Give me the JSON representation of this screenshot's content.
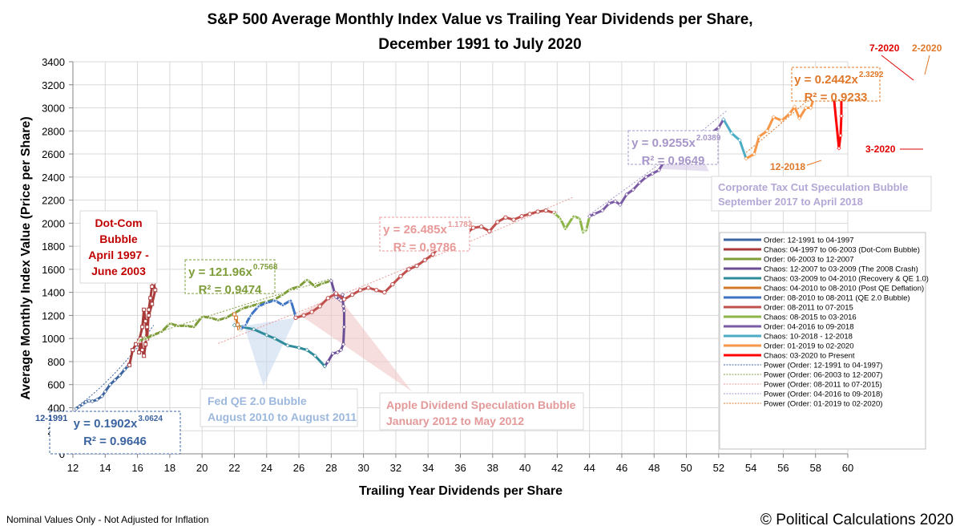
{
  "chart_data": {
    "type": "line",
    "title": "S&P 500 Average Monthly Index Value vs Trailing Year Dividends per Share,",
    "subtitle": "December 1991 to July 2020",
    "xlabel": "Trailing Year Dividends per Share",
    "ylabel": "Average Monthly Index Value (Price per Share)",
    "xlim": [
      12,
      60
    ],
    "ylim": [
      0,
      3400
    ],
    "xticks": [
      12,
      14,
      16,
      18,
      20,
      22,
      24,
      26,
      28,
      30,
      32,
      34,
      36,
      38,
      40,
      42,
      44,
      46,
      48,
      50,
      52,
      54,
      56,
      58,
      60
    ],
    "yticks": [
      0,
      200,
      400,
      600,
      800,
      1000,
      1200,
      1400,
      1600,
      1800,
      2000,
      2200,
      2400,
      2600,
      2800,
      3000,
      3200,
      3400
    ],
    "grid": true,
    "legend_position": "bottom-right",
    "series": [
      {
        "name": "Order: 12-1991 to 04-1997",
        "color": "#3B64A0",
        "marker": "diamond",
        "points": [
          [
            12.2,
            390
          ],
          [
            12.4,
            410
          ],
          [
            12.6,
            430
          ],
          [
            12.8,
            450
          ],
          [
            13.0,
            460
          ],
          [
            13.2,
            455
          ],
          [
            13.5,
            470
          ],
          [
            13.8,
            500
          ],
          [
            14.0,
            540
          ],
          [
            14.3,
            600
          ],
          [
            14.6,
            640
          ],
          [
            14.9,
            680
          ],
          [
            15.2,
            730
          ],
          [
            15.4,
            760
          ],
          [
            15.5,
            780
          ]
        ]
      },
      {
        "name": "Chaos: 04-1997 to 06-2003 (Dot-Com Bubble)",
        "color": "#A83A3A",
        "marker": "square",
        "points": [
          [
            15.5,
            770
          ],
          [
            15.7,
            900
          ],
          [
            15.9,
            950
          ],
          [
            16.1,
            980
          ],
          [
            16.3,
            1100
          ],
          [
            16.4,
            1250
          ],
          [
            16.5,
            1150
          ],
          [
            16.6,
            1000
          ],
          [
            16.7,
            1250
          ],
          [
            16.8,
            1350
          ],
          [
            16.9,
            1450
          ],
          [
            17.0,
            1480
          ],
          [
            17.1,
            1420
          ],
          [
            16.9,
            1300
          ],
          [
            16.7,
            1200
          ],
          [
            16.6,
            1100
          ],
          [
            16.5,
            950
          ],
          [
            16.4,
            850
          ],
          [
            16.3,
            900
          ],
          [
            16.2,
            1000
          ],
          [
            16.1,
            880
          ]
        ]
      },
      {
        "name": "Order: 06-2003 to 12-2007",
        "color": "#7E9D3A",
        "marker": "triangle",
        "points": [
          [
            16.1,
            980
          ],
          [
            16.5,
            1000
          ],
          [
            17.0,
            1030
          ],
          [
            17.5,
            1060
          ],
          [
            18.0,
            1130
          ],
          [
            18.5,
            1110
          ],
          [
            19.0,
            1110
          ],
          [
            19.5,
            1100
          ],
          [
            20.0,
            1190
          ],
          [
            20.5,
            1180
          ],
          [
            21.0,
            1160
          ],
          [
            21.5,
            1180
          ],
          [
            22.0,
            1220
          ],
          [
            22.5,
            1260
          ],
          [
            23.0,
            1280
          ],
          [
            23.5,
            1300
          ],
          [
            24.0,
            1320
          ],
          [
            24.5,
            1340
          ],
          [
            25.0,
            1380
          ],
          [
            25.5,
            1430
          ],
          [
            26.0,
            1450
          ],
          [
            26.5,
            1510
          ],
          [
            27.0,
            1450
          ],
          [
            27.5,
            1480
          ],
          [
            28.0,
            1500
          ]
        ]
      },
      {
        "name": "Chaos: 12-2007 to 03-2009 (The 2008 Crash)",
        "color": "#6A4F96",
        "marker": "diamond",
        "points": [
          [
            28.0,
            1500
          ],
          [
            28.2,
            1400
          ],
          [
            28.3,
            1360
          ],
          [
            28.5,
            1340
          ],
          [
            28.6,
            1330
          ],
          [
            28.7,
            1380
          ],
          [
            28.75,
            1280
          ],
          [
            28.8,
            1240
          ],
          [
            28.8,
            1100
          ],
          [
            28.75,
            950
          ],
          [
            28.6,
            900
          ],
          [
            28.4,
            880
          ],
          [
            28.1,
            870
          ],
          [
            27.8,
            800
          ],
          [
            27.6,
            760
          ]
        ]
      },
      {
        "name": "Chaos: 03-2009 to 04-2010 (Recovery & QE 1.0)",
        "color": "#2E8B9A",
        "marker": "diamond",
        "points": [
          [
            27.6,
            760
          ],
          [
            27.0,
            850
          ],
          [
            26.5,
            900
          ],
          [
            26.0,
            920
          ],
          [
            25.3,
            940
          ],
          [
            24.5,
            1000
          ],
          [
            24.0,
            1030
          ],
          [
            23.2,
            1080
          ],
          [
            22.5,
            1100
          ],
          [
            22.0,
            1115
          ]
        ]
      },
      {
        "name": "Chaos: 04-2010 to 08-2010 (Post QE Deflation)",
        "color": "#D2782A",
        "marker": "square",
        "points": [
          [
            22.0,
            1210
          ],
          [
            22.1,
            1180
          ],
          [
            22.2,
            1120
          ],
          [
            22.3,
            1090
          ],
          [
            22.4,
            1080
          ]
        ]
      },
      {
        "name": "Order: 08-2010 to 08-2011 (QE 2.0 Bubble)",
        "color": "#3F74C4",
        "marker": "triangle",
        "points": [
          [
            22.4,
            1080
          ],
          [
            22.7,
            1120
          ],
          [
            23.0,
            1200
          ],
          [
            23.5,
            1280
          ],
          [
            24.0,
            1310
          ],
          [
            24.5,
            1330
          ],
          [
            25.0,
            1290
          ],
          [
            25.5,
            1330
          ],
          [
            25.8,
            1190
          ]
        ]
      },
      {
        "name": "Order: 08-2011 to 07-2015",
        "color": "#C0504D",
        "marker": "circle",
        "points": [
          [
            25.8,
            1180
          ],
          [
            26.3,
            1200
          ],
          [
            26.8,
            1230
          ],
          [
            27.3,
            1280
          ],
          [
            27.8,
            1350
          ],
          [
            28.3,
            1390
          ],
          [
            28.8,
            1340
          ],
          [
            29.3,
            1380
          ],
          [
            29.8,
            1420
          ],
          [
            30.3,
            1440
          ],
          [
            30.8,
            1420
          ],
          [
            31.3,
            1400
          ],
          [
            31.8,
            1470
          ],
          [
            32.3,
            1540
          ],
          [
            32.8,
            1600
          ],
          [
            33.3,
            1630
          ],
          [
            33.8,
            1680
          ],
          [
            34.3,
            1730
          ],
          [
            34.8,
            1810
          ],
          [
            35.3,
            1850
          ],
          [
            35.8,
            1870
          ],
          [
            36.3,
            1900
          ],
          [
            36.8,
            1960
          ],
          [
            37.3,
            1970
          ],
          [
            37.8,
            1930
          ],
          [
            38.3,
            2010
          ],
          [
            38.8,
            2050
          ],
          [
            39.3,
            2030
          ],
          [
            39.8,
            2060
          ],
          [
            40.3,
            2080
          ],
          [
            40.8,
            2100
          ],
          [
            41.3,
            2110
          ],
          [
            41.8,
            2090
          ]
        ]
      },
      {
        "name": "Chaos: 08-2015 to 03-2016",
        "color": "#8EB54A",
        "marker": "triangle",
        "points": [
          [
            41.8,
            2090
          ],
          [
            42.2,
            2040
          ],
          [
            42.5,
            1950
          ],
          [
            43.0,
            2060
          ],
          [
            43.4,
            2040
          ],
          [
            43.6,
            1920
          ],
          [
            43.8,
            1940
          ],
          [
            44.0,
            2060
          ]
        ]
      },
      {
        "name": "Order: 04-2016 to 09-2018",
        "color": "#7C5BA6",
        "marker": "diamond",
        "points": [
          [
            44.0,
            2060
          ],
          [
            44.3,
            2080
          ],
          [
            44.8,
            2110
          ],
          [
            45.2,
            2170
          ],
          [
            45.6,
            2190
          ],
          [
            45.9,
            2160
          ],
          [
            46.3,
            2250
          ],
          [
            46.7,
            2290
          ],
          [
            47.1,
            2350
          ],
          [
            47.5,
            2400
          ],
          [
            47.9,
            2430
          ],
          [
            48.3,
            2460
          ],
          [
            48.6,
            2530
          ],
          [
            49.0,
            2620
          ],
          [
            49.4,
            2770
          ],
          [
            49.7,
            2700
          ],
          [
            50.2,
            2690
          ],
          [
            50.6,
            2640
          ],
          [
            51.0,
            2720
          ],
          [
            51.5,
            2780
          ],
          [
            52.0,
            2830
          ],
          [
            52.3,
            2900
          ]
        ]
      },
      {
        "name": "Chaos: 10-2018 - 12-2018",
        "color": "#4BACC6",
        "marker": "diamond",
        "points": [
          [
            52.3,
            2900
          ],
          [
            52.8,
            2780
          ],
          [
            53.3,
            2720
          ],
          [
            53.7,
            2560
          ]
        ]
      },
      {
        "name": "Order: 01-2019 to 02-2020",
        "color": "#F79646",
        "marker": "diamond",
        "points": [
          [
            53.7,
            2560
          ],
          [
            54.2,
            2600
          ],
          [
            54.5,
            2750
          ],
          [
            55.0,
            2800
          ],
          [
            55.4,
            2920
          ],
          [
            55.9,
            2890
          ],
          [
            56.4,
            2950
          ],
          [
            56.7,
            3010
          ],
          [
            57.0,
            2910
          ],
          [
            57.4,
            3000
          ],
          [
            57.7,
            3000
          ],
          [
            58.0,
            3130
          ],
          [
            58.4,
            3230
          ],
          [
            58.7,
            3290
          ],
          [
            59.2,
            3280
          ]
        ]
      },
      {
        "name": "Chaos: 03-2020 to Present",
        "color": "#FF0000",
        "marker": "diamond",
        "points": [
          [
            59.2,
            3280
          ],
          [
            59.3,
            3190
          ],
          [
            59.6,
            3100
          ],
          [
            59.6,
            2930
          ],
          [
            59.55,
            2760
          ],
          [
            59.45,
            2650
          ],
          [
            59.0,
            3280
          ]
        ]
      }
    ],
    "trendlines": [
      {
        "name": "Power (Order: 12-1991 to 04-1997)",
        "color": "#3B64A0",
        "a": 0.1902,
        "b": 3.0624,
        "r2": 0.9646,
        "equation": "y = 0.1902x",
        "exponent": "3.0624",
        "r2_text": "R² = 0.9646",
        "x_range": [
          12.2,
          17.0
        ]
      },
      {
        "name": "Power (Order: 06-2003 to 12-2007)",
        "color": "#7E9D3A",
        "a": 121.96,
        "b": 0.7568,
        "r2": 0.9474,
        "equation": "y = 121.96x",
        "exponent": "0.7568",
        "r2_text": "R² = 0.9474",
        "x_range": [
          16.0,
          28.0
        ]
      },
      {
        "name": "Power (Order: 08-2011 to 07-2015)",
        "color": "#E89A99",
        "a": 26.485,
        "b": 1.1783,
        "r2": 0.9786,
        "equation": "y = 26.485x",
        "exponent": "1.1783",
        "r2_text": "R² = 0.9786",
        "x_range": [
          21.0,
          43.0
        ]
      },
      {
        "name": "Power (Order: 04-2016 to 09-2018)",
        "color": "#A796C9",
        "a": 0.9255,
        "b": 2.0389,
        "r2": 0.9649,
        "equation": "y = 0.9255x",
        "exponent": "2.0389",
        "r2_text": "R² = 0.9649",
        "x_range": [
          44.0,
          52.5
        ]
      },
      {
        "name": "Power (Order: 01-2019 to 02-2020)",
        "color": "#E0782A",
        "a": 0.2442,
        "b": 2.3292,
        "r2": 0.9233,
        "equation": "y = 0.2442x",
        "exponent": "2.3292",
        "r2_text": "R² = 0.9233",
        "x_range": [
          53.7,
          59.3
        ]
      }
    ],
    "annotations": {
      "dotcom": {
        "lines": [
          "Dot-Com",
          "Bubble",
          "April 1997 -",
          "June 2003"
        ],
        "color": "#C00000"
      },
      "fedqe": {
        "lines": [
          "Fed QE 2.0 Bubble",
          "August 2010 to August 2011"
        ],
        "color": "#9DB8DE"
      },
      "apple": {
        "lines": [
          "Apple Dividend Speculation Bubble",
          "January 2012 to May 2012"
        ],
        "color": "#E39999"
      },
      "taxcut": {
        "lines": [
          "Corporate Tax Cut Speculation Bubble",
          "September 2017 to April 2018"
        ],
        "color": "#B4A7D6"
      },
      "labels": [
        {
          "text": "12-1991",
          "color": "#2F5597"
        },
        {
          "text": "12-2018",
          "color": "#E0782A"
        },
        {
          "text": "7-2020",
          "color": "#E00000"
        },
        {
          "text": "2-2020",
          "color": "#E0782A"
        },
        {
          "text": "3-2020",
          "color": "#E00000"
        }
      ]
    },
    "footer_left": "Nominal Values Only - Not Adjusted for Inflation",
    "footer_right": "© Political Calculations 2020"
  }
}
